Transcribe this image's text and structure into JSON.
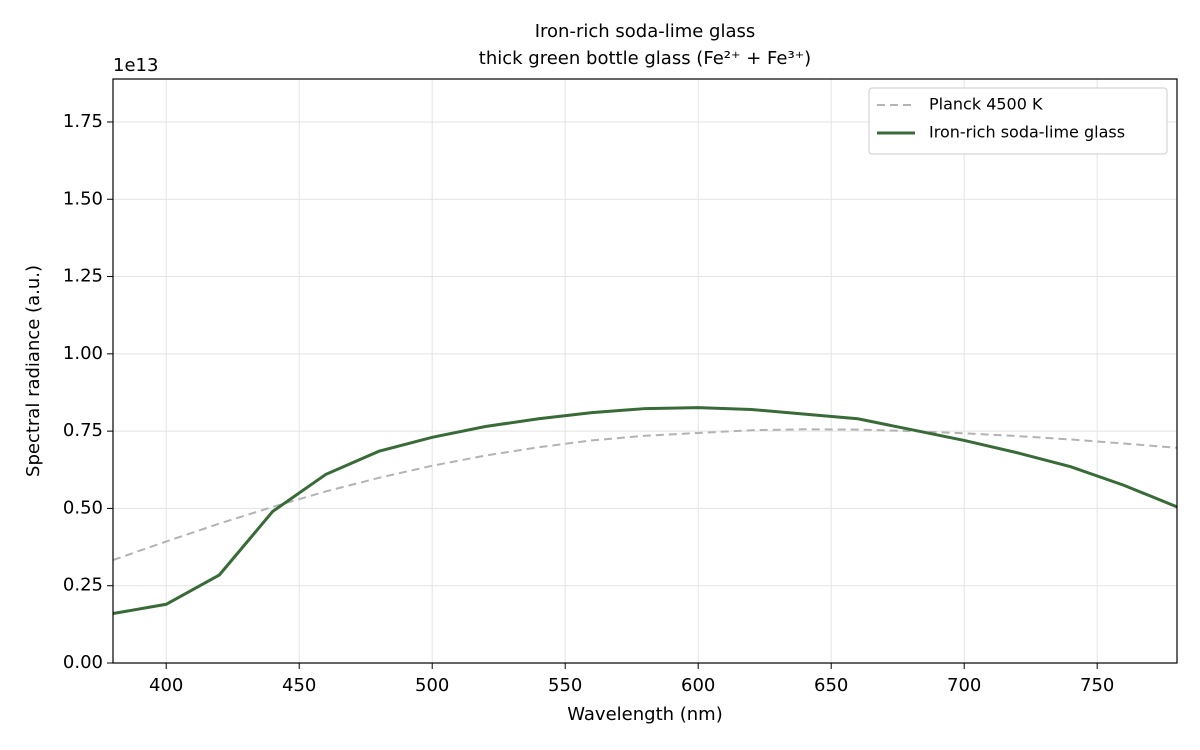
{
  "chart_data": {
    "type": "line",
    "title": "Iron-rich soda-lime glass",
    "subtitle": "thick green bottle glass (Fe²⁺ + Fe³⁺)",
    "x_label": "Wavelength (nm)",
    "y_label": "Spectral radiance  (a.u.)",
    "y_offset_label": "1e13",
    "x": [
      380,
      400,
      420,
      440,
      460,
      480,
      500,
      520,
      540,
      560,
      580,
      600,
      620,
      640,
      660,
      680,
      700,
      720,
      740,
      760,
      780
    ],
    "series": [
      {
        "name": "Planck 4500 K",
        "color": "#b3b3b3",
        "linestyle": "dashed",
        "values": [
          0.333,
          0.393,
          0.451,
          0.505,
          0.555,
          0.599,
          0.638,
          0.671,
          0.698,
          0.72,
          0.735,
          0.744,
          0.753,
          0.756,
          0.755,
          0.75,
          0.743,
          0.734,
          0.723,
          0.71,
          0.696
        ]
      },
      {
        "name": "Iron-rich soda-lime glass",
        "color": "#386b38",
        "linestyle": "solid",
        "values": [
          0.16,
          0.19,
          0.285,
          0.49,
          0.61,
          0.685,
          0.73,
          0.765,
          0.79,
          0.81,
          0.823,
          0.826,
          0.82,
          0.805,
          0.79,
          0.755,
          0.72,
          0.68,
          0.635,
          0.575,
          0.505
        ]
      }
    ],
    "xlim": [
      380,
      780
    ],
    "xticks": [
      400,
      450,
      500,
      550,
      600,
      650,
      700,
      750
    ],
    "ylim": [
      0,
      1.889
    ],
    "yticks": [
      {
        "value": 0,
        "label": "0.00"
      },
      0.25,
      {
        "value": 0.5,
        "label": "0.50"
      },
      0.75,
      {
        "value": 1,
        "label": "1.00"
      },
      1.25,
      {
        "value": 1.5,
        "label": "1.50"
      },
      1.75
    ],
    "grid": true,
    "legend": "upper right"
  }
}
